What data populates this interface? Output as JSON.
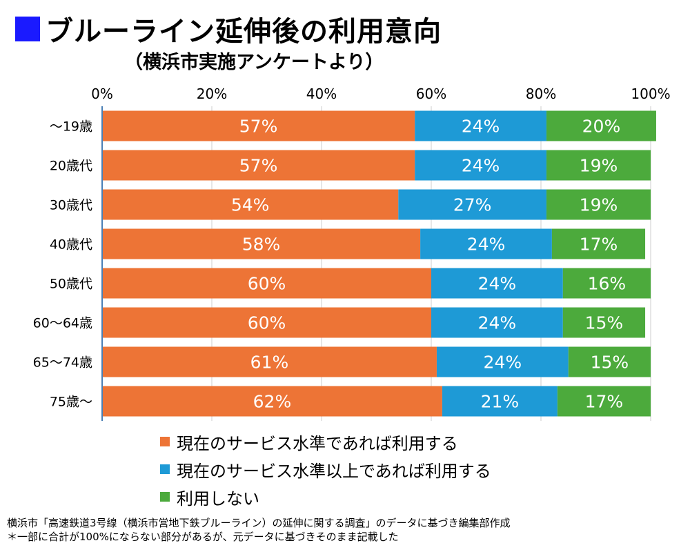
{
  "header": {
    "title": "ブルーライン延伸後の利用意向",
    "subtitle": "（横浜市実施アンケートより）"
  },
  "footnotes": [
    "横浜市「高速鉄道3号線（横浜市営地下鉄ブルーライン）の延伸に関する調査」のデータに基づき編集部作成",
    "＊一部に合計が100%にならない部分があるが、元データに基づきそのまま記載した"
  ],
  "colors": {
    "title_square": "#1a1aff",
    "axis": "#4a7fb5",
    "grid": "#cccccc"
  },
  "chart_data": {
    "type": "bar",
    "orientation": "horizontal",
    "stacked": true,
    "title": "ブルーライン延伸後の利用意向",
    "subtitle": "（横浜市実施アンケートより）",
    "xlim": [
      0,
      100
    ],
    "x_ticks": [
      "0%",
      "20%",
      "40%",
      "60%",
      "80%",
      "100%"
    ],
    "x_tick_values": [
      0,
      20,
      40,
      60,
      80,
      100
    ],
    "grid": true,
    "legend_position": "bottom",
    "categories": [
      "～19歳",
      "20歳代",
      "30歳代",
      "40歳代",
      "50歳代",
      "60～64歳",
      "65～74歳",
      "75歳～"
    ],
    "series": [
      {
        "name": "現在のサービス水準であれば利用する",
        "color": "#ed7436",
        "values": [
          57,
          57,
          54,
          58,
          60,
          60,
          61,
          62
        ],
        "labels": [
          "57%",
          "57%",
          "54%",
          "58%",
          "60%",
          "60%",
          "61%",
          "62%"
        ]
      },
      {
        "name": "現在のサービス水準以上であれば利用する",
        "color": "#1e9ad6",
        "values": [
          24,
          24,
          27,
          24,
          24,
          24,
          24,
          21
        ],
        "labels": [
          "24%",
          "24%",
          "27%",
          "24%",
          "24%",
          "24%",
          "24%",
          "21%"
        ]
      },
      {
        "name": "利用しない",
        "color": "#4caa3c",
        "values": [
          20,
          19,
          19,
          17,
          16,
          15,
          15,
          17
        ],
        "labels": [
          "20%",
          "19%",
          "19%",
          "17%",
          "16%",
          "15%",
          "15%",
          "17%"
        ]
      }
    ]
  }
}
